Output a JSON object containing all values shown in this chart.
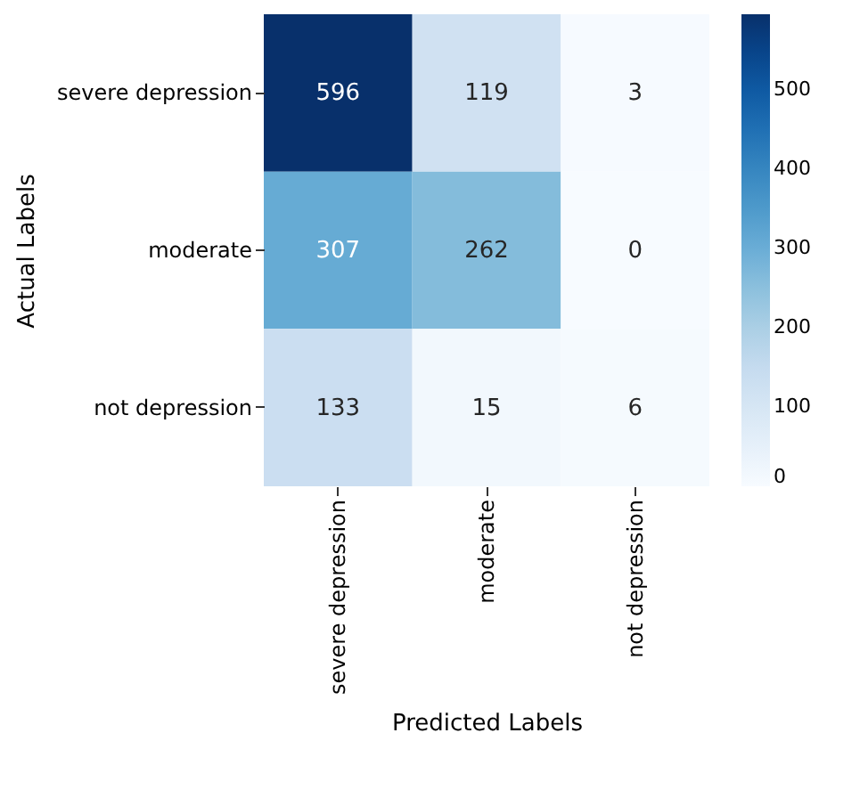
{
  "chart_data": {
    "type": "heatmap",
    "xlabel": "Predicted Labels",
    "ylabel": "Actual Labels",
    "categories": [
      "severe depression",
      "moderate",
      "not depression"
    ],
    "y_categories": [
      "severe depression",
      "moderate",
      "not depression"
    ],
    "cells": [
      [
        596,
        119,
        3
      ],
      [
        307,
        262,
        0
      ],
      [
        133,
        15,
        6
      ]
    ],
    "clim": [
      0,
      596
    ],
    "cticks": [
      0,
      100,
      200,
      300,
      400,
      500
    ],
    "data_labels": true
  }
}
